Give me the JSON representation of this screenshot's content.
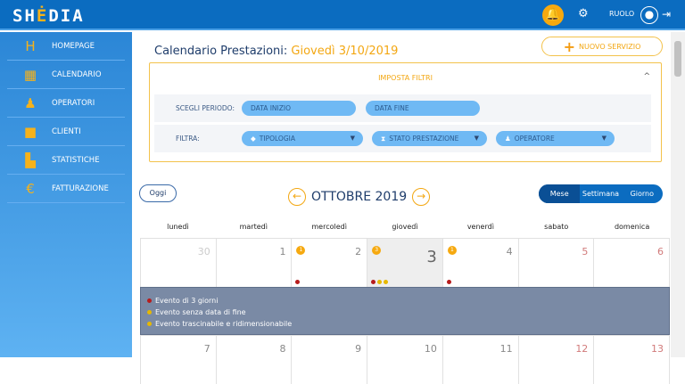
{
  "header": {
    "logo": "SHEDIA",
    "role": "RUOLO"
  },
  "sidebar": {
    "items": [
      {
        "label": "HOMEPAGE",
        "icon": "home-icon",
        "glyph": "H"
      },
      {
        "label": "CALENDARIO",
        "icon": "grid-icon",
        "glyph": "▦"
      },
      {
        "label": "OPERATORI",
        "icon": "operator-icon",
        "glyph": "👤"
      },
      {
        "label": "CLIENTI",
        "icon": "bag-icon",
        "glyph": "■"
      },
      {
        "label": "STATISTICHE",
        "icon": "chart-icon",
        "glyph": "▮"
      },
      {
        "label": "FATTURAZIONE",
        "icon": "invoice-icon",
        "glyph": "€"
      }
    ]
  },
  "page": {
    "title": "Calendario Prestazioni:",
    "date": "Giovedì 3/10/2019",
    "new_service": "NUOVO SERVIZIO"
  },
  "filters": {
    "title": "IMPOSTA FILTRI",
    "period_label": "SCEGLI PERIODO:",
    "start_placeholder": "DATA INIZIO",
    "end_placeholder": "DATA FINE",
    "filter_label": "FILTRA:",
    "tipologia": "TIPOLOGIA",
    "stato": "STATO PRESTAZIONE",
    "operatore": "OPERATORE"
  },
  "calendar": {
    "today_button": "Oggi",
    "month": "OTTOBRE 2019",
    "views": [
      "Mese",
      "Settimana",
      "Giorno"
    ],
    "active_view": "Mese",
    "weekdays": [
      "lunedì",
      "martedì",
      "mercoledì",
      "giovedì",
      "venerdì",
      "sabato",
      "domenica"
    ],
    "week1": [
      "30",
      "1",
      "2",
      "3",
      "4",
      "5",
      "6"
    ],
    "week2": [
      "7",
      "8",
      "9",
      "10",
      "11",
      "12",
      "13"
    ],
    "badges": {
      "2": "1",
      "3": "3",
      "4": "1"
    },
    "events": [
      {
        "label": "Evento di 3 giorni",
        "color": "#b71c1c"
      },
      {
        "label": "Evento senza data di fine",
        "color": "#e6b800"
      },
      {
        "label": "Evento trascinabile e ridimensionabile",
        "color": "#e6b800"
      }
    ]
  }
}
